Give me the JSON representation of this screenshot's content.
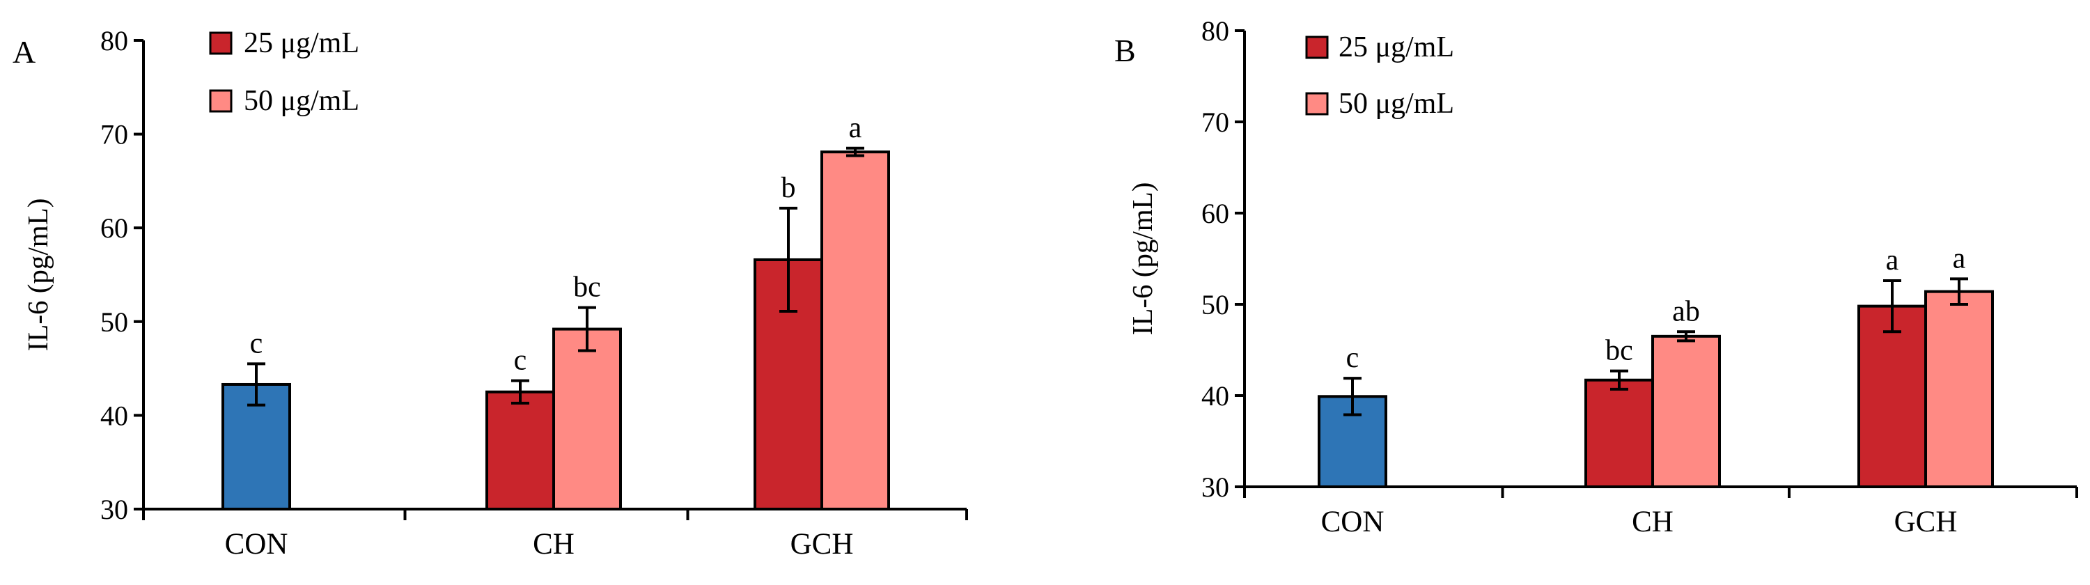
{
  "chart_data": [
    {
      "panel": "A",
      "type": "bar",
      "ylabel": "IL-6 (pg/mL)",
      "xlabel": "",
      "ylim": [
        30,
        80
      ],
      "yticks": [
        30,
        40,
        50,
        60,
        70,
        80
      ],
      "categories": [
        "CON",
        "CH",
        "GCH"
      ],
      "legend": [
        "25 μg/mL",
        "50 μg/mL"
      ],
      "legend_position": "top-left",
      "colors": {
        "control": "#2e75b6",
        "dose25": "#c9252c",
        "dose50": "#ff8a84"
      },
      "bars": [
        {
          "category": "CON",
          "series": "control",
          "value": 43.3,
          "error": 2.2,
          "label": "c"
        },
        {
          "category": "CH",
          "series": "25 μg/mL",
          "value": 42.5,
          "error": 1.2,
          "label": "c"
        },
        {
          "category": "CH",
          "series": "50 μg/mL",
          "value": 49.2,
          "error": 2.3,
          "label": "bc"
        },
        {
          "category": "GCH",
          "series": "25 μg/mL",
          "value": 56.6,
          "error": 5.5,
          "label": "b"
        },
        {
          "category": "GCH",
          "series": "50 μg/mL",
          "value": 68.1,
          "error": 0.4,
          "label": "a"
        }
      ]
    },
    {
      "panel": "B",
      "type": "bar",
      "ylabel": "IL-6 (pg/mL)",
      "xlabel": "",
      "ylim": [
        30,
        80
      ],
      "yticks": [
        30,
        40,
        50,
        60,
        70,
        80
      ],
      "categories": [
        "CON",
        "CH",
        "GCH"
      ],
      "legend": [
        "25 μg/mL",
        "50 μg/mL"
      ],
      "legend_position": "top-left",
      "colors": {
        "control": "#2e75b6",
        "dose25": "#c9252c",
        "dose50": "#ff8a84"
      },
      "bars": [
        {
          "category": "CON",
          "series": "control",
          "value": 39.9,
          "error": 2.0,
          "label": "c"
        },
        {
          "category": "CH",
          "series": "25 μg/mL",
          "value": 41.7,
          "error": 1.0,
          "label": "bc"
        },
        {
          "category": "CH",
          "series": "50 μg/mL",
          "value": 46.5,
          "error": 0.5,
          "label": "ab"
        },
        {
          "category": "GCH",
          "series": "25 μg/mL",
          "value": 49.8,
          "error": 2.8,
          "label": "a"
        },
        {
          "category": "GCH",
          "series": "50 μg/mL",
          "value": 51.4,
          "error": 1.4,
          "label": "a"
        }
      ]
    }
  ]
}
